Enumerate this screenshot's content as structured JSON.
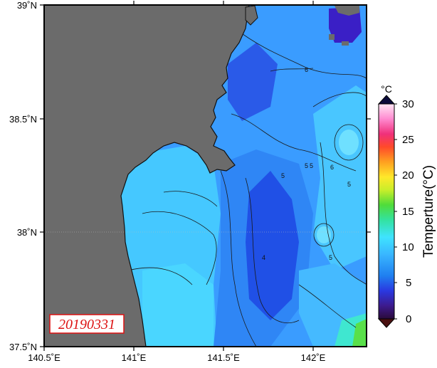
{
  "map": {
    "lat_ticks": [
      "39˚N",
      "38.5˚N",
      "38˚N",
      "37.5˚N"
    ],
    "lon_ticks": [
      "140.5˚E",
      "141˚E",
      "141.5˚E",
      "142˚E"
    ],
    "date_stamp": "20190331",
    "contour_labels": [
      "6",
      "5",
      "5",
      "5",
      "5",
      "4",
      "5",
      "6"
    ],
    "colors": {
      "land": "#6b6b6b",
      "coastline": "#111111",
      "water_light": "#3fd3ff",
      "water_mid": "#33a3ff",
      "water_dark": "#1c3ce6",
      "water_deep": "#3b1fc4",
      "contour": "#1a1a1a"
    }
  },
  "colorbar": {
    "unit": "°C",
    "title": "Temperture(°C)",
    "ticks": [
      "30",
      "25",
      "20",
      "15",
      "10",
      "5",
      "0"
    ],
    "range": [
      0,
      30
    ],
    "extend": "both"
  }
}
